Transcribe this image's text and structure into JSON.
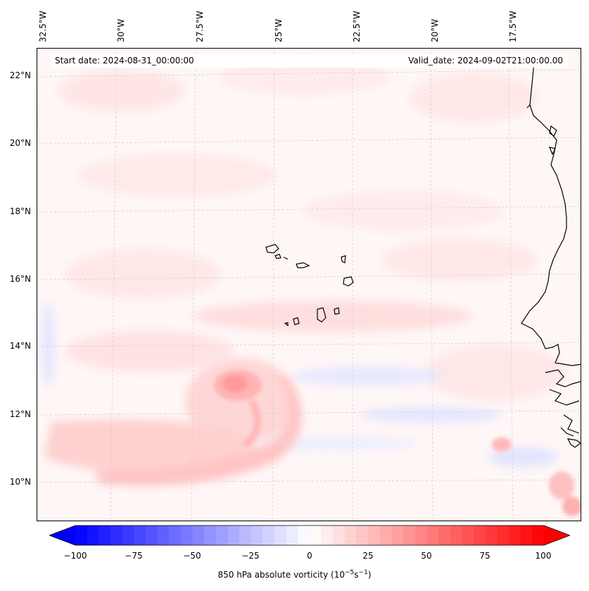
{
  "header": {
    "start_date": "Start date: 2024-08-31_00:00:00",
    "valid_date": "Valid_date: 2024-09-02T21:00:00.00"
  },
  "axes": {
    "lon_labels": [
      "32.5°W",
      "30°W",
      "27.5°W",
      "25°W",
      "22.5°W",
      "20°W",
      "17.5°W"
    ],
    "lat_labels": [
      "22°N",
      "20°N",
      "18°N",
      "16°N",
      "14°N",
      "12°N",
      "10°N"
    ]
  },
  "colorbar": {
    "ticks": [
      "−100",
      "−75",
      "−50",
      "−25",
      "0",
      "25",
      "50",
      "75",
      "100"
    ],
    "range": [
      -100,
      100
    ],
    "label_main": "850 hPa absolute vorticity (10",
    "label_exp1": "−5",
    "label_mid": "s",
    "label_exp2": "−1",
    "label_end": ")",
    "colors": {
      "negative": "#0000ff",
      "zero": "#ffffff",
      "positive": "#ff0000"
    }
  },
  "colors": {
    "coastline": "#000000",
    "gridline": "#cccccc",
    "background_field": "#fff7f7"
  }
}
